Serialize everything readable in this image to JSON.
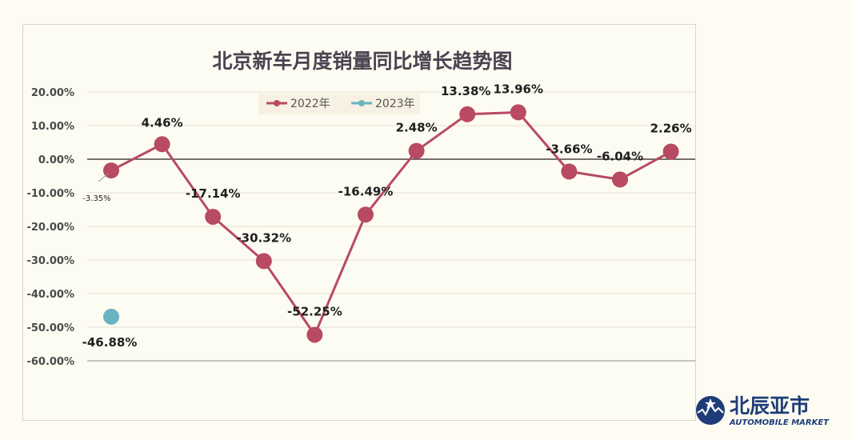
{
  "chart_data": {
    "type": "line",
    "title": "北京新车月度销量同比增长趋势图",
    "ylim": [
      -60,
      20
    ],
    "y_step": 10,
    "y_tick_labels": [
      "20.00%",
      "10.00%",
      "0.00%",
      "-10.00%",
      "-20.00%",
      "-30.00%",
      "-40.00%",
      "-50.00%",
      "-60.00%"
    ],
    "grid": true,
    "legend_position": "top-center",
    "series": [
      {
        "name": "2022年",
        "color": "#b84a62",
        "values": [
          -3.35,
          4.46,
          -17.14,
          -30.32,
          -52.25,
          -16.49,
          2.48,
          13.38,
          13.96,
          -3.66,
          -6.04,
          2.26
        ],
        "labels": [
          "-3.35%",
          "4.46%",
          "-17.14%",
          "-30.32%",
          "-52.25%",
          "-16.49%",
          "2.48%",
          "13.38%",
          "13.96%",
          "-3.66%",
          "-6.04%",
          "2.26%"
        ]
      },
      {
        "name": "2023年",
        "color": "#6ab3c0",
        "values": [
          -46.88
        ],
        "labels": [
          "-46.88%"
        ]
      }
    ]
  },
  "logo": {
    "main": "北辰亚市",
    "sub": "AUTOMOBILE MARKET"
  }
}
